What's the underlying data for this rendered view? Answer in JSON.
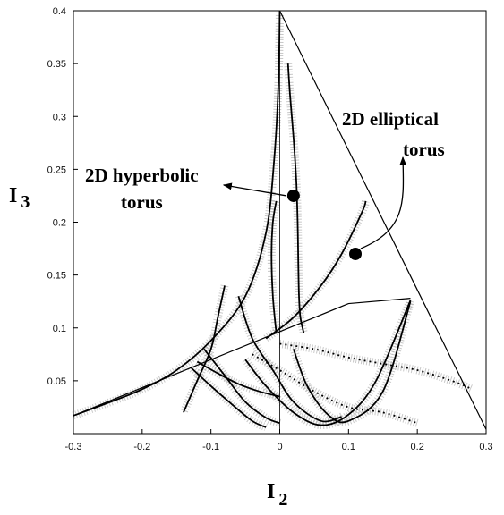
{
  "chart_data": {
    "type": "scatter",
    "title": "",
    "xlabel": {
      "main": "I",
      "sub": "2"
    },
    "ylabel": {
      "main": "I",
      "sub": "3"
    },
    "xlim": [
      -0.3,
      0.3
    ],
    "ylim": [
      0,
      0.4
    ],
    "x_ticks": [
      "-0.3",
      "-0.2",
      "-0.1",
      "0",
      "0.1",
      "0.2",
      "0.3"
    ],
    "y_ticks": [
      "0.05",
      "0.1",
      "0.15",
      "0.2",
      "0.25",
      "0.3",
      "0.35",
      "0.4"
    ],
    "grid": false,
    "colors": {
      "curve": "#000000",
      "shading": "#9a9a9a",
      "frame": "#000000"
    },
    "annotations": [
      {
        "id": "hyperbolic",
        "lines": [
          "2D hyperbolic",
          "torus"
        ],
        "point": [
          0.02,
          0.225
        ]
      },
      {
        "id": "elliptical",
        "lines": [
          "2D elliptical",
          "torus"
        ],
        "point": [
          0.11,
          0.17
        ]
      }
    ],
    "series": [
      {
        "points": [
          [
            -0.3,
            0.017
          ],
          [
            -0.2,
            0.0435
          ],
          [
            -0.1,
            0.07
          ],
          [
            0,
            0.0965
          ],
          [
            0.1,
            0.123
          ],
          [
            0.19,
            0.128
          ]
        ]
      },
      {
        "points": [
          [
            0,
            0.4
          ],
          [
            0.05,
            0.334
          ],
          [
            0.1,
            0.268
          ],
          [
            0.15,
            0.202
          ],
          [
            0.2,
            0.136
          ],
          [
            0.25,
            0.07
          ],
          [
            0.3,
            0.004
          ]
        ]
      },
      {
        "points": [
          [
            -0.3,
            0.017
          ],
          [
            -0.25,
            0.029
          ],
          [
            -0.2,
            0.042
          ],
          [
            -0.15,
            0.06
          ],
          [
            -0.1,
            0.088
          ],
          [
            -0.05,
            0.13
          ],
          [
            -0.02,
            0.19
          ],
          [
            -0.008,
            0.26
          ],
          [
            -0.002,
            0.33
          ],
          [
            0,
            0.4
          ]
        ]
      },
      {
        "points": [
          [
            0.012,
            0.35
          ],
          [
            0.015,
            0.32
          ],
          [
            0.02,
            0.28
          ],
          [
            0.024,
            0.24
          ],
          [
            0.026,
            0.2
          ],
          [
            0.027,
            0.16
          ],
          [
            0.028,
            0.13
          ],
          [
            0.03,
            0.11
          ],
          [
            0.035,
            0.095
          ]
        ]
      },
      {
        "points": [
          [
            -0.02,
            0.09
          ],
          [
            0.02,
            0.11
          ],
          [
            0.06,
            0.14
          ],
          [
            0.09,
            0.17
          ],
          [
            0.12,
            0.21
          ],
          [
            0.125,
            0.22
          ]
        ]
      },
      {
        "points": [
          [
            -0.005,
            0.095
          ],
          [
            -0.01,
            0.13
          ],
          [
            -0.012,
            0.17
          ],
          [
            -0.01,
            0.2
          ],
          [
            -0.005,
            0.22
          ]
        ]
      },
      {
        "points": [
          [
            -0.13,
            0.063
          ],
          [
            -0.1,
            0.045
          ],
          [
            -0.07,
            0.028
          ],
          [
            -0.04,
            0.012
          ],
          [
            -0.02,
            0.006
          ]
        ]
      },
      {
        "points": [
          [
            -0.11,
            0.08
          ],
          [
            -0.08,
            0.055
          ],
          [
            -0.05,
            0.03
          ],
          [
            -0.02,
            0.015
          ],
          [
            0.0,
            0.01
          ]
        ]
      },
      {
        "points": [
          [
            -0.08,
            0.14
          ],
          [
            -0.09,
            0.11
          ],
          [
            -0.1,
            0.08
          ],
          [
            -0.12,
            0.05
          ],
          [
            -0.14,
            0.02
          ]
        ]
      },
      {
        "points": [
          [
            -0.06,
            0.13
          ],
          [
            -0.04,
            0.09
          ],
          [
            -0.01,
            0.06
          ],
          [
            0.02,
            0.03
          ],
          [
            0.06,
            0.012
          ],
          [
            0.09,
            0.016
          ]
        ]
      },
      {
        "points": [
          [
            0.02,
            0.08
          ],
          [
            0.04,
            0.045
          ],
          [
            0.07,
            0.018
          ],
          [
            0.1,
            0.012
          ],
          [
            0.15,
            0.04
          ],
          [
            0.19,
            0.125
          ]
        ]
      },
      {
        "points": [
          [
            -0.05,
            0.07
          ],
          [
            -0.02,
            0.045
          ],
          [
            0.02,
            0.02
          ],
          [
            0.06,
            0.008
          ],
          [
            0.1,
            0.018
          ],
          [
            0.14,
            0.05
          ],
          [
            0.19,
            0.126
          ]
        ]
      },
      {
        "points": [
          [
            -0.12,
            0.068
          ],
          [
            -0.09,
            0.057
          ],
          [
            -0.06,
            0.047
          ],
          [
            -0.03,
            0.04
          ],
          [
            0.0,
            0.035
          ]
        ]
      },
      {
        "points": [
          [
            0.0,
            0.085
          ],
          [
            0.05,
            0.08
          ],
          [
            0.1,
            0.072
          ],
          [
            0.15,
            0.066
          ],
          [
            0.2,
            0.06
          ],
          [
            0.25,
            0.05
          ],
          [
            0.28,
            0.042
          ]
        ]
      },
      {
        "points": [
          [
            -0.04,
            0.075
          ],
          [
            0.0,
            0.06
          ],
          [
            0.05,
            0.04
          ],
          [
            0.1,
            0.025
          ],
          [
            0.15,
            0.02
          ],
          [
            0.2,
            0.01
          ]
        ]
      }
    ]
  }
}
